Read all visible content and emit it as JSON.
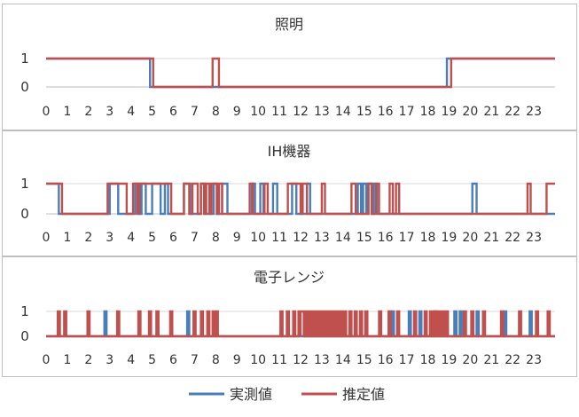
{
  "colors": {
    "actual": "#4a7ebb",
    "estimated": "#c0504d",
    "grid": "#d9d9d9",
    "axis": "#bfbfbf",
    "panel_border": "#bfbfbf",
    "text": "#333333"
  },
  "legend": {
    "actual": "実測値",
    "estimated": "推定値",
    "placement": "bottom-center"
  },
  "chart_data": [
    {
      "type": "line",
      "title": "照明",
      "xlim": [
        0,
        24
      ],
      "ylim": [
        0,
        1
      ],
      "x_ticks": [
        0,
        1,
        2,
        3,
        4,
        5,
        6,
        7,
        8,
        9,
        10,
        11,
        12,
        13,
        14,
        15,
        16,
        17,
        18,
        19,
        20,
        21,
        22,
        23
      ],
      "x_tick_labels": [
        "0",
        "1",
        "2",
        "3",
        "4",
        "5",
        "6",
        "7",
        "8",
        "9",
        "10",
        "11",
        "12",
        "13",
        "14",
        "15",
        "16",
        "17",
        "18",
        "19",
        "20",
        "21",
        "22",
        "23"
      ],
      "y_ticks": [
        0,
        1
      ],
      "grid": true,
      "series": [
        {
          "name": "実測値",
          "off_intervals": [
            [
              4.9,
              18.9
            ]
          ]
        },
        {
          "name": "推定値",
          "off_intervals": [
            [
              5.05,
              7.85
            ],
            [
              8.15,
              19.1
            ]
          ]
        }
      ]
    },
    {
      "type": "line",
      "title": "IH機器",
      "xlim": [
        0,
        24
      ],
      "ylim": [
        0,
        1
      ],
      "x_ticks": [
        0,
        1,
        2,
        3,
        4,
        5,
        6,
        7,
        8,
        9,
        10,
        11,
        12,
        13,
        14,
        15,
        16,
        17,
        18,
        19,
        20,
        21,
        22,
        23
      ],
      "x_tick_labels": [
        "0",
        "1",
        "2",
        "3",
        "4",
        "5",
        "6",
        "7",
        "8",
        "9",
        "10",
        "11",
        "12",
        "13",
        "14",
        "15",
        "16",
        "17",
        "18",
        "19",
        "20",
        "21",
        "22",
        "23"
      ],
      "y_ticks": [
        0,
        1
      ],
      "grid": true,
      "series": [
        {
          "name": "実測値",
          "on_intervals": [
            [
              0.0,
              0.6
            ],
            [
              3.0,
              3.4
            ],
            [
              4.2,
              4.4
            ],
            [
              4.5,
              4.7
            ],
            [
              5.0,
              5.4
            ],
            [
              5.6,
              5.75
            ],
            [
              6.5,
              6.8
            ],
            [
              7.3,
              7.5
            ],
            [
              7.9,
              8.05
            ],
            [
              8.3,
              8.55
            ],
            [
              9.7,
              9.85
            ],
            [
              10.1,
              10.25
            ],
            [
              10.7,
              10.9
            ],
            [
              11.6,
              11.8
            ],
            [
              12.3,
              12.45
            ],
            [
              14.7,
              14.85
            ],
            [
              14.95,
              15.1
            ],
            [
              15.2,
              15.35
            ],
            [
              15.45,
              15.6
            ],
            [
              20.1,
              20.3
            ]
          ]
        },
        {
          "name": "推定値",
          "on_intervals": [
            [
              0.0,
              0.75
            ],
            [
              2.9,
              3.8
            ],
            [
              4.1,
              4.3
            ],
            [
              4.4,
              5.9
            ],
            [
              6.5,
              6.75
            ],
            [
              6.9,
              7.15
            ],
            [
              7.3,
              7.45
            ],
            [
              7.55,
              7.7
            ],
            [
              7.8,
              8.05
            ],
            [
              8.15,
              8.3
            ],
            [
              9.6,
              9.75
            ],
            [
              10.3,
              10.45
            ],
            [
              11.4,
              12.0
            ],
            [
              12.1,
              12.3
            ],
            [
              13.0,
              13.15
            ],
            [
              14.4,
              14.6
            ],
            [
              15.2,
              15.35
            ],
            [
              15.55,
              15.7
            ],
            [
              16.2,
              16.35
            ],
            [
              16.5,
              16.65
            ],
            [
              22.7,
              22.85
            ],
            [
              23.6,
              24.0
            ]
          ]
        }
      ]
    },
    {
      "type": "line",
      "title": "電子レンジ",
      "xlim": [
        0,
        24
      ],
      "ylim": [
        0,
        1
      ],
      "x_ticks": [
        0,
        1,
        2,
        3,
        4,
        5,
        6,
        7,
        8,
        9,
        10,
        11,
        12,
        13,
        14,
        15,
        16,
        17,
        18,
        19,
        20,
        21,
        22,
        23
      ],
      "x_tick_labels": [
        "0",
        "1",
        "2",
        "3",
        "4",
        "5",
        "6",
        "7",
        "8",
        "9",
        "10",
        "11",
        "12",
        "13",
        "14",
        "15",
        "16",
        "17",
        "18",
        "19",
        "20",
        "21",
        "22",
        "23"
      ],
      "y_ticks": [
        0,
        1
      ],
      "grid": true,
      "series": [
        {
          "name": "実測値",
          "on_intervals": [
            [
              2.75,
              2.85
            ],
            [
              6.65,
              6.75
            ],
            [
              16.3,
              16.4
            ],
            [
              17.1,
              17.2
            ],
            [
              17.6,
              17.7
            ],
            [
              18.3,
              18.4
            ],
            [
              19.25,
              19.35
            ],
            [
              19.5,
              19.6
            ],
            [
              20.3,
              20.4
            ],
            [
              21.6,
              21.7
            ],
            [
              22.8,
              22.9
            ]
          ]
        },
        {
          "name": "推定値",
          "on_intervals": [
            [
              0.55,
              0.65
            ],
            [
              0.85,
              0.95
            ],
            [
              1.95,
              2.05
            ],
            [
              3.35,
              3.45
            ],
            [
              4.35,
              4.45
            ],
            [
              4.85,
              4.95
            ],
            [
              5.2,
              5.3
            ],
            [
              5.85,
              5.95
            ],
            [
              6.95,
              7.05
            ],
            [
              7.3,
              7.4
            ],
            [
              7.6,
              7.7
            ],
            [
              7.85,
              7.95
            ],
            [
              8.0,
              8.1
            ],
            [
              11.05,
              11.15
            ],
            [
              11.35,
              11.45
            ],
            [
              11.65,
              11.75
            ],
            [
              11.9,
              12.0
            ],
            [
              12.0,
              12.15
            ],
            [
              12.2,
              12.3
            ],
            [
              12.35,
              12.45
            ],
            [
              12.5,
              12.6
            ],
            [
              12.65,
              12.75
            ],
            [
              12.8,
              12.9
            ],
            [
              13.0,
              13.1
            ],
            [
              13.15,
              13.25
            ],
            [
              13.3,
              13.4
            ],
            [
              13.5,
              13.6
            ],
            [
              13.7,
              13.8
            ],
            [
              13.9,
              14.0
            ],
            [
              14.05,
              14.15
            ],
            [
              14.3,
              14.4
            ],
            [
              14.55,
              14.65
            ],
            [
              14.8,
              14.9
            ],
            [
              15.05,
              15.15
            ],
            [
              15.7,
              15.8
            ],
            [
              16.15,
              16.25
            ],
            [
              16.55,
              16.65
            ],
            [
              17.35,
              17.45
            ],
            [
              17.85,
              17.95
            ],
            [
              18.1,
              18.2
            ],
            [
              18.25,
              18.35
            ],
            [
              18.4,
              18.5
            ],
            [
              18.55,
              18.65
            ],
            [
              18.7,
              18.8
            ],
            [
              18.85,
              18.95
            ],
            [
              19.7,
              19.8
            ],
            [
              20.05,
              20.15
            ],
            [
              20.6,
              20.7
            ],
            [
              21.45,
              21.55
            ],
            [
              22.3,
              22.4
            ],
            [
              23.1,
              23.2
            ],
            [
              23.65,
              23.75
            ]
          ]
        }
      ]
    }
  ]
}
